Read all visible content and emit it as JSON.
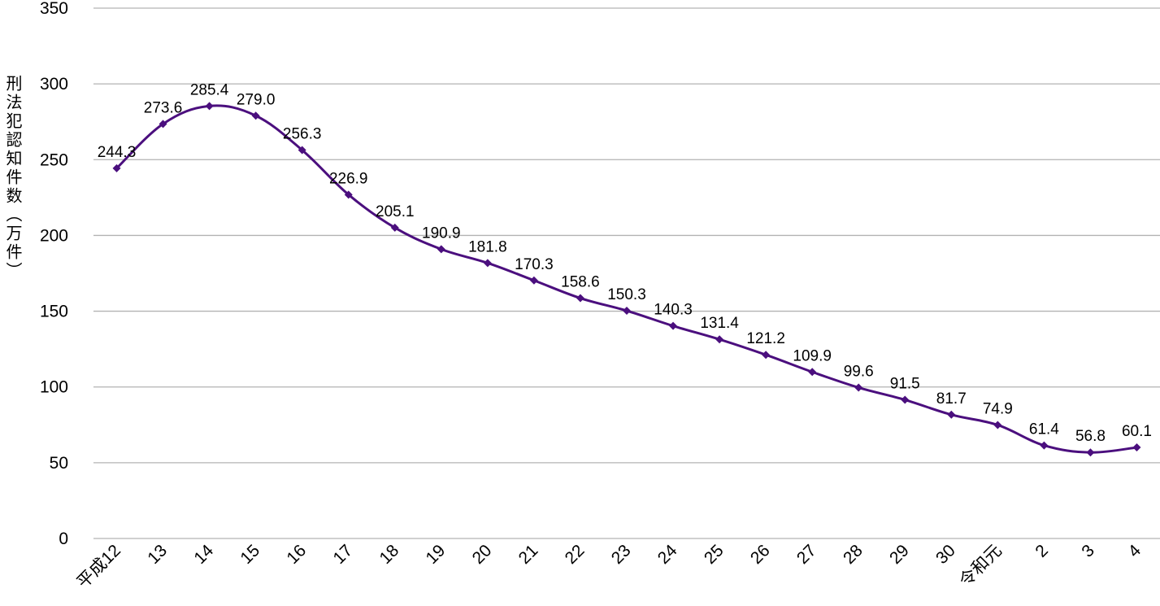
{
  "chart_data": {
    "type": "line",
    "title": "",
    "ylabel": "刑法犯認知件数（万件）",
    "xlabel": "",
    "categories": [
      "平成12",
      "13",
      "14",
      "15",
      "16",
      "17",
      "18",
      "19",
      "20",
      "21",
      "22",
      "23",
      "24",
      "25",
      "26",
      "27",
      "28",
      "29",
      "30",
      "令和元",
      "2",
      "3",
      "4"
    ],
    "series": [
      {
        "values": [
          244.3,
          273.6,
          285.4,
          279.0,
          256.3,
          226.9,
          205.1,
          190.9,
          181.8,
          170.3,
          158.6,
          150.3,
          140.3,
          131.4,
          121.2,
          109.9,
          99.6,
          91.5,
          81.7,
          74.9,
          61.4,
          56.8,
          60.1
        ],
        "labels": [
          "244.3",
          "273.6",
          "285.4",
          "279.0",
          "256.3",
          "226.9",
          "205.1",
          "190.9",
          "181.8",
          "170.3",
          "158.6",
          "150.3",
          "140.3",
          "131.4",
          "121.2",
          "109.9",
          "99.6",
          "91.5",
          "81.7",
          "74.9",
          "61.4",
          "56.8",
          "60.1"
        ],
        "color": "#4B0F7E"
      }
    ],
    "ylim": [
      0,
      350
    ],
    "yticks": [
      0,
      50,
      100,
      150,
      200,
      250,
      300,
      350
    ],
    "grid": true,
    "gridColor": "#b3b3b3"
  }
}
